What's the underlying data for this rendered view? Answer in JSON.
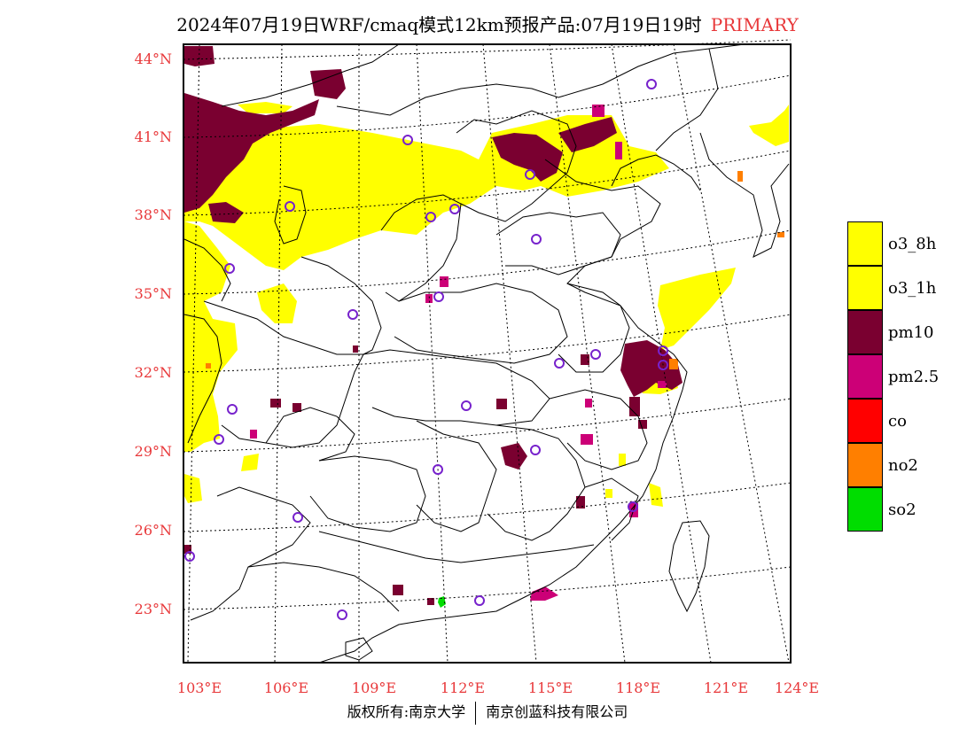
{
  "title": {
    "main": "2024年07月19日WRF/cmaq模式12km预报产品:07月19日19时",
    "tag": "PRIMARY"
  },
  "colors": {
    "label_red": "#e8383a",
    "o3_8h": "#ffff00",
    "o3_1h": "#ffff00",
    "pm10": "#7a0030",
    "pm25": "#cc0077",
    "co": "#ff0000",
    "no2": "#ff7f00",
    "so2": "#00dd00",
    "station_ring": "#7722cc"
  },
  "latitude_labels": [
    "44°N",
    "41°N",
    "38°N",
    "35°N",
    "32°N",
    "29°N",
    "26°N",
    "23°N"
  ],
  "longitude_labels": [
    "103°E",
    "106°E",
    "109°E",
    "112°E",
    "115°E",
    "118°E",
    "121°E",
    "124°E"
  ],
  "legend": [
    {
      "label": "o3_8h",
      "color": "#ffff00"
    },
    {
      "label": "o3_1h",
      "color": "#ffff00"
    },
    {
      "label": "pm10",
      "color": "#7a0030"
    },
    {
      "label": "pm2.5",
      "color": "#cc0077"
    },
    {
      "label": "co",
      "color": "#ff0000"
    },
    {
      "label": "no2",
      "color": "#ff7f00"
    },
    {
      "label": "so2",
      "color": "#00dd00"
    }
  ],
  "copyright": {
    "left": "版权所有:南京大学",
    "right": "南京创蓝科技有限公司"
  }
}
